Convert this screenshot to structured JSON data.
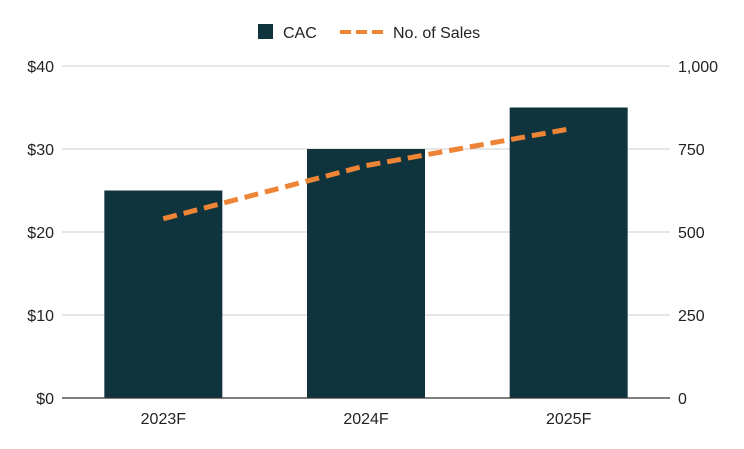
{
  "chart_data": {
    "type": "bar",
    "categories": [
      "2023F",
      "2024F",
      "2025F"
    ],
    "series": [
      {
        "name": "CAC",
        "kind": "bar",
        "axis": "left",
        "values": [
          25,
          30,
          35
        ],
        "color": "#10343e"
      },
      {
        "name": "No. of Sales",
        "kind": "line",
        "style": "dashed",
        "axis": "right",
        "values": [
          540,
          700,
          810
        ],
        "color": "#ee8435"
      }
    ],
    "left_axis": {
      "range": [
        0,
        40
      ],
      "ticks": [
        0,
        10,
        20,
        30,
        40
      ],
      "tick_labels": [
        "$0",
        "$10",
        "$20",
        "$30",
        "$40"
      ]
    },
    "right_axis": {
      "range": [
        0,
        1000
      ],
      "ticks": [
        0,
        250,
        500,
        750,
        1000
      ],
      "tick_labels": [
        "0",
        "250",
        "500",
        "750",
        "1,000"
      ]
    },
    "grid": true,
    "legend_position": "top-center",
    "gridline_color": "#cccccc",
    "axis_color": "#333333"
  }
}
